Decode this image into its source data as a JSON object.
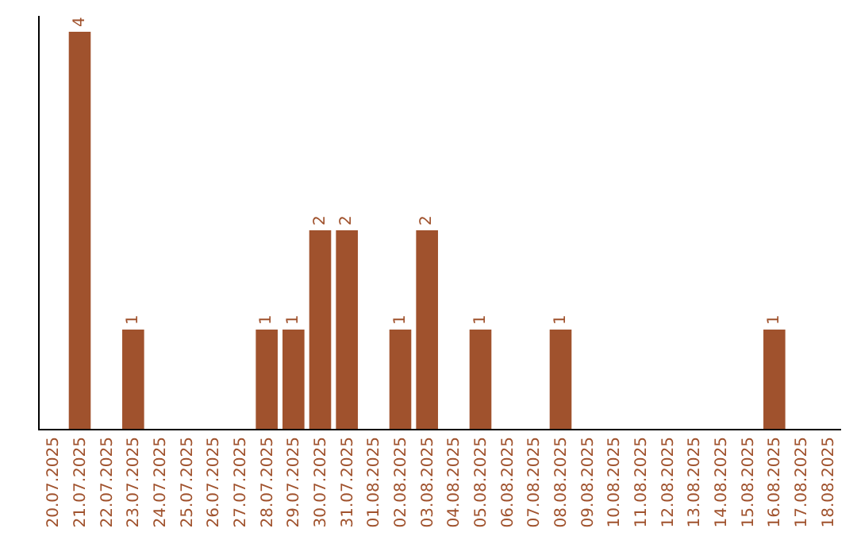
{
  "chart_data": {
    "type": "bar",
    "categories": [
      "20.07.2025",
      "21.07.2025",
      "22.07.2025",
      "23.07.2025",
      "24.07.2025",
      "25.07.2025",
      "26.07.2025",
      "27.07.2025",
      "28.07.2025",
      "29.07.2025",
      "30.07.2025",
      "31.07.2025",
      "01.08.2025",
      "02.08.2025",
      "03.08.2025",
      "04.08.2025",
      "05.08.2025",
      "06.08.2025",
      "07.08.2025",
      "08.08.2025",
      "09.08.2025",
      "10.08.2025",
      "11.08.2025",
      "12.08.2025",
      "13.08.2025",
      "14.08.2025",
      "15.08.2025",
      "16.08.2025",
      "17.08.2025",
      "18.08.2025"
    ],
    "values": [
      0,
      4,
      0,
      1,
      0,
      0,
      0,
      0,
      1,
      1,
      2,
      2,
      0,
      1,
      2,
      0,
      1,
      0,
      0,
      1,
      0,
      0,
      0,
      0,
      0,
      0,
      0,
      1,
      0,
      0
    ],
    "value_labels": [
      null,
      "4",
      null,
      "1",
      null,
      null,
      null,
      null,
      "1",
      "1",
      "2",
      "2",
      null,
      "1",
      "2",
      null,
      "1",
      null,
      null,
      "1",
      null,
      null,
      null,
      null,
      null,
      null,
      null,
      "1",
      null,
      null
    ],
    "color": "#a0522d",
    "grid": false,
    "legend": false
  }
}
